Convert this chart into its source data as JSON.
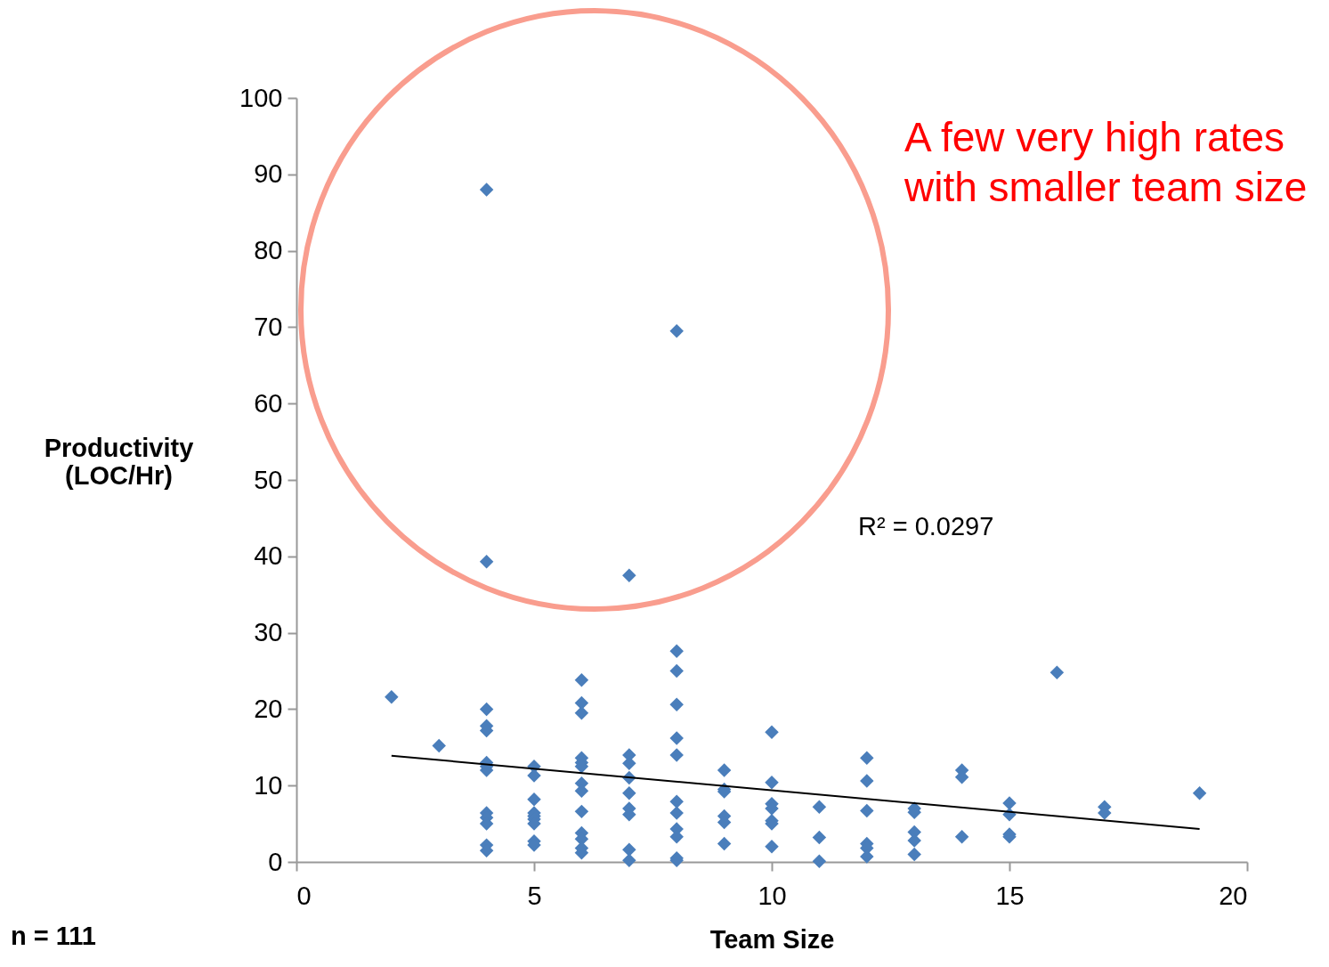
{
  "chart_data": {
    "type": "scatter",
    "xlabel": "Team Size",
    "ylabel": "Productivity (LOC/Hr)",
    "xlim": [
      0,
      20
    ],
    "xticks": [
      0,
      5,
      10,
      15,
      20
    ],
    "ylim": [
      0,
      100
    ],
    "yticks": [
      0,
      10,
      20,
      30,
      40,
      50,
      60,
      70,
      80,
      90,
      100
    ],
    "grid": false,
    "annotations": [
      "A few very high rates with smaller team size",
      "R² = 0.0297",
      "n = 111"
    ],
    "series": [
      {
        "color": "#4a7ebb",
        "marker": "diamond",
        "x": [
          2,
          3,
          4,
          4,
          4,
          4,
          4,
          4,
          4,
          4,
          4,
          4,
          4,
          4,
          4,
          5,
          5,
          5,
          5,
          5,
          5,
          5,
          5,
          5,
          6,
          6,
          6,
          6,
          6,
          6,
          6,
          6,
          6,
          6,
          6,
          6,
          6,
          7,
          7,
          7,
          7,
          7,
          7,
          7,
          7,
          7,
          8,
          8,
          8,
          8,
          8,
          8,
          8,
          8,
          8,
          8,
          8,
          8,
          9,
          9,
          9,
          9,
          9,
          9,
          10,
          10,
          10,
          10,
          10,
          10,
          10,
          11,
          11,
          11,
          12,
          12,
          12,
          12,
          12,
          12,
          13,
          13,
          13,
          13,
          13,
          14,
          14,
          14,
          15,
          15,
          15,
          15,
          16,
          17,
          17,
          19
        ],
        "values": [
          21.6,
          15.2,
          88,
          39.3,
          20,
          17.8,
          17.2,
          13,
          12.5,
          12,
          6.4,
          5.8,
          5,
          2.2,
          1.5,
          12.5,
          11.3,
          8.2,
          6.4,
          6,
          5.6,
          5,
          2.7,
          2.2,
          23.8,
          20.8,
          19.5,
          13.6,
          13,
          12.5,
          10.3,
          9.3,
          6.6,
          3.8,
          3,
          1.8,
          1.2,
          37.5,
          14,
          12.9,
          11,
          9,
          7,
          6.2,
          1.6,
          0.2,
          69.5,
          27.6,
          25,
          20.6,
          16.2,
          14,
          7.9,
          6.4,
          4.3,
          3.3,
          0.5,
          0.2,
          12,
          9.5,
          9.2,
          6,
          5.2,
          2.4,
          17,
          10.4,
          7.6,
          7,
          5.4,
          5,
          2,
          7.2,
          3.2,
          0.1,
          13.6,
          10.6,
          6.7,
          2.4,
          1.8,
          0.7,
          7,
          6.5,
          3.9,
          2.8,
          1,
          12,
          11.1,
          3.3,
          7.7,
          6.2,
          3.6,
          3.3,
          24.8,
          7.2,
          6.4,
          9
        ]
      },
      {
        "type": "line",
        "marker": "none",
        "color": "#000000",
        "x": [
          2,
          19
        ],
        "values": [
          13.9,
          4.3
        ]
      }
    ]
  }
}
